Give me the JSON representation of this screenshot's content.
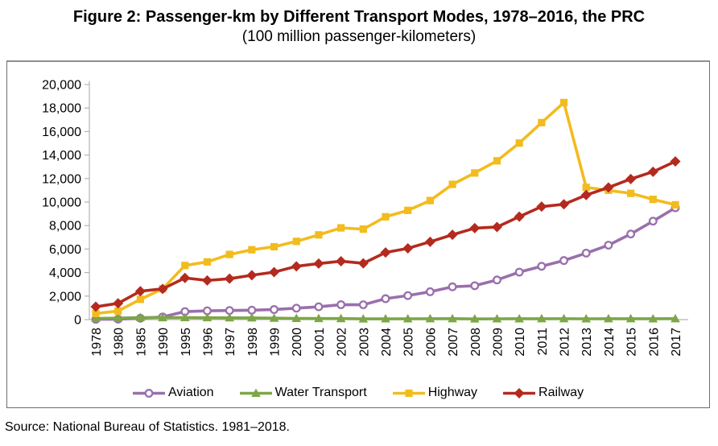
{
  "chart_data": {
    "type": "line",
    "title": "Figure 2: Passenger-km by Different Transport Modes, 1978–2016, the PRC",
    "subtitle": "(100 million passenger-kilometers)",
    "source": "Source: National Bureau of Statistics. 1981–2018.",
    "ylim": [
      0,
      20000
    ],
    "ytick_step": 2000,
    "grid": false,
    "legend_position": "bottom",
    "axis_color": "#b3b3b3",
    "categories": [
      "1978",
      "1980",
      "1985",
      "1990",
      "1995",
      "1996",
      "1997",
      "1998",
      "1999",
      "2000",
      "2001",
      "2002",
      "2003",
      "2004",
      "2005",
      "2006",
      "2007",
      "2008",
      "2009",
      "2010",
      "2011",
      "2012",
      "2013",
      "2014",
      "2015",
      "2016",
      "2017"
    ],
    "series": [
      {
        "name": "Aviation",
        "color": "#9a6fad",
        "marker": "circle-open",
        "values": [
          28,
          40,
          117,
          230,
          681,
          748,
          774,
          800,
          858,
          971,
          1091,
          1269,
          1263,
          1782,
          2045,
          2371,
          2792,
          2883,
          3375,
          4039,
          4537,
          5026,
          5657,
          6334,
          7283,
          8378,
          9513
        ]
      },
      {
        "name": "Water Transport",
        "color": "#7da647",
        "marker": "triangle",
        "values": [
          101,
          129,
          179,
          165,
          172,
          160,
          151,
          145,
          122,
          101,
          90,
          87,
          63,
          66,
          68,
          74,
          78,
          59,
          69,
          72,
          75,
          77,
          68,
          74,
          73,
          72,
          78
        ]
      },
      {
        "name": "Highway",
        "color": "#f2bc1e",
        "marker": "square",
        "values": [
          521,
          730,
          1725,
          2620,
          4603,
          4909,
          5541,
          5943,
          6199,
          6657,
          7207,
          7806,
          7696,
          8748,
          9292,
          10131,
          11507,
          12476,
          13511,
          15021,
          16760,
          18468,
          11251,
          10997,
          10743,
          10229,
          9765
        ]
      },
      {
        "name": "Railway",
        "color": "#b42a1e",
        "marker": "diamond",
        "values": [
          1093,
          1383,
          2416,
          2615,
          3546,
          3330,
          3481,
          3774,
          4041,
          4533,
          4767,
          4969,
          4789,
          5712,
          6062,
          6622,
          7216,
          7779,
          7879,
          8762,
          9612,
          9812,
          10596,
          11242,
          11961,
          12579,
          13457
        ]
      }
    ]
  }
}
